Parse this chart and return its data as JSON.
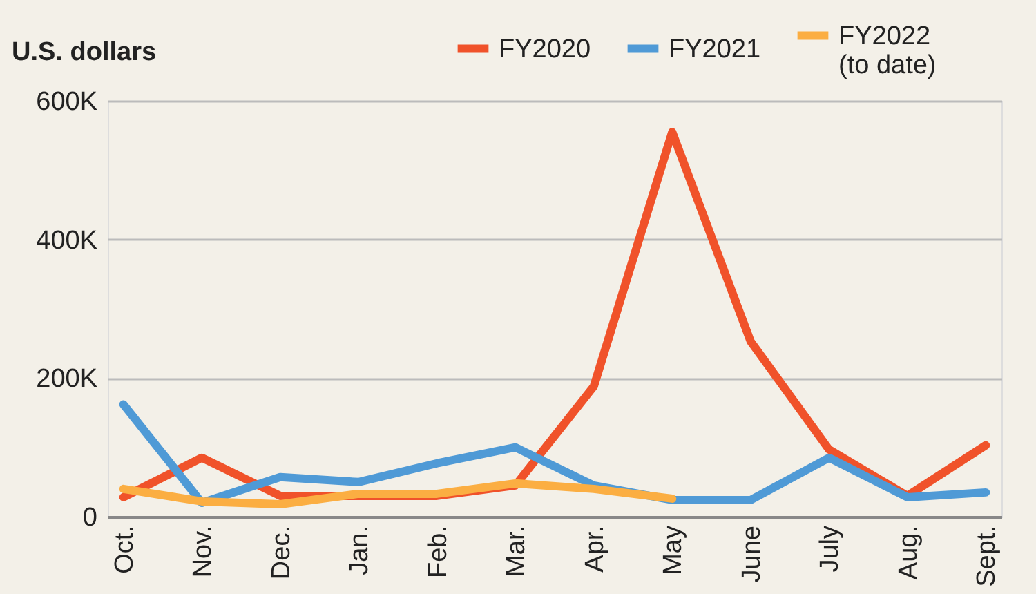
{
  "chart_data": {
    "type": "line",
    "ylabel": "U.S. dollars",
    "categories": [
      "Oct.",
      "Nov.",
      "Dec.",
      "Jan.",
      "Feb.",
      "Mar.",
      "Apr.",
      "May",
      "June",
      "July",
      "Aug.",
      "Sept."
    ],
    "series": [
      {
        "name": "FY2020",
        "color": "#f0522a",
        "values": [
          28000,
          85000,
          30000,
          30000,
          30000,
          45000,
          188000,
          555000,
          253000,
          97000,
          30000,
          103000
        ]
      },
      {
        "name": "FY2021",
        "color": "#4f9ad6",
        "values": [
          162000,
          20000,
          57000,
          50000,
          77000,
          100000,
          45000,
          24000,
          24000,
          85000,
          28000,
          35000
        ]
      },
      {
        "name": "FY2022\n(to date)",
        "color": "#fbae42",
        "values": [
          40000,
          22000,
          18000,
          33000,
          33000,
          48000,
          40000,
          26000,
          null,
          null,
          null,
          null
        ]
      }
    ],
    "ylim": [
      0,
      600000
    ],
    "yticks": [
      0,
      {
        "value": 200000,
        "label": "200K"
      },
      {
        "value": 400000,
        "label": "400K"
      },
      {
        "value": 600000,
        "label": "600K"
      }
    ],
    "grid": "y",
    "legend": "top right",
    "marker": "none",
    "line_style": "solid"
  }
}
